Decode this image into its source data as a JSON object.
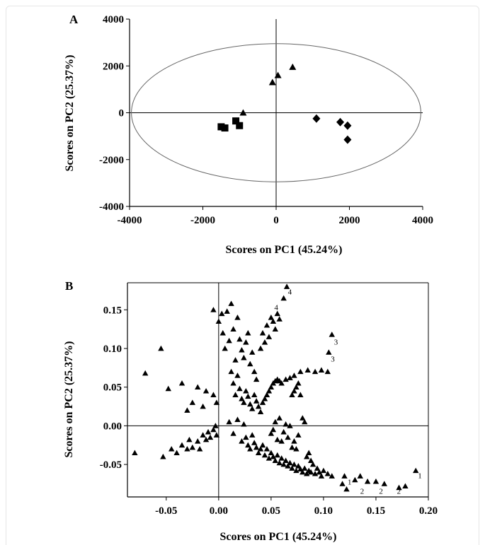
{
  "chart_data": [
    {
      "panel": "A",
      "type": "scatter",
      "xlabel": "Scores on PC1 (45.24%)",
      "ylabel": "Scores on PC2 (25.37%)",
      "xlim": [
        -4000,
        4000
      ],
      "ylim": [
        -4000,
        4000
      ],
      "xticks": [
        "-4000",
        "-2000",
        "0",
        "2000",
        "4000"
      ],
      "yticks": [
        "-4000",
        "-2000",
        "0",
        "2000",
        "4000"
      ],
      "confidence_ellipse": {
        "cx": 0,
        "cy": 0,
        "rx": 3950,
        "ry": 2950
      },
      "series": [
        {
          "marker": "square",
          "points": [
            [
              -1500,
              -600
            ],
            [
              -1400,
              -650
            ],
            [
              -1100,
              -350
            ],
            [
              -1000,
              -550
            ]
          ]
        },
        {
          "marker": "triangle",
          "points": [
            [
              -900,
              0
            ],
            [
              -100,
              1300
            ],
            [
              50,
              1600
            ],
            [
              450,
              1950
            ]
          ]
        },
        {
          "marker": "diamond",
          "points": [
            [
              1100,
              -250
            ],
            [
              1750,
              -400
            ],
            [
              1950,
              -550
            ],
            [
              1950,
              -1150
            ]
          ]
        }
      ]
    },
    {
      "panel": "B",
      "type": "scatter",
      "xlabel": "Scores on PC1 (45.24%)",
      "ylabel": "Scores on PC2 (25.37%)",
      "xlim": [
        -0.087,
        0.2
      ],
      "ylim": [
        -0.092,
        0.185
      ],
      "xticks": [
        "-0.05",
        "0.00",
        "0.05",
        "0.10",
        "0.15",
        "0.20"
      ],
      "yticks": [
        "-0.05",
        "0.00",
        "0.05",
        "0.10",
        "0.15"
      ],
      "series": [
        {
          "marker": "triangle",
          "points": [
            [
              -0.08,
              -0.035
            ],
            [
              -0.07,
              0.068
            ],
            [
              -0.055,
              0.1
            ],
            [
              -0.048,
              0.048
            ],
            [
              -0.053,
              -0.04
            ],
            [
              -0.045,
              -0.03
            ],
            [
              -0.04,
              -0.035
            ],
            [
              -0.035,
              -0.025
            ],
            [
              -0.03,
              -0.03
            ],
            [
              -0.028,
              -0.018
            ],
            [
              -0.025,
              -0.028
            ],
            [
              -0.02,
              -0.02
            ],
            [
              -0.018,
              -0.03
            ],
            [
              -0.015,
              -0.012
            ],
            [
              -0.012,
              -0.018
            ],
            [
              -0.01,
              -0.008
            ],
            [
              -0.008,
              -0.015
            ],
            [
              -0.005,
              -0.005
            ],
            [
              -0.003,
              0.0
            ],
            [
              -0.002,
              -0.012
            ],
            [
              -0.02,
              0.05
            ],
            [
              -0.012,
              0.045
            ],
            [
              -0.005,
              0.04
            ],
            [
              -0.002,
              0.03
            ],
            [
              -0.025,
              0.03
            ],
            [
              -0.035,
              0.055
            ],
            [
              -0.03,
              0.02
            ],
            [
              -0.015,
              0.025
            ],
            [
              -0.005,
              0.15
            ],
            [
              0.0,
              0.135
            ],
            [
              0.003,
              0.145
            ],
            [
              0.008,
              0.148
            ],
            [
              0.012,
              0.158
            ],
            [
              0.004,
              0.12
            ],
            [
              0.006,
              0.1
            ],
            [
              0.01,
              0.11
            ],
            [
              0.014,
              0.125
            ],
            [
              0.018,
              0.14
            ],
            [
              0.02,
              0.112
            ],
            [
              0.022,
              0.098
            ],
            [
              0.024,
              0.088
            ],
            [
              0.026,
              0.108
            ],
            [
              0.028,
              0.12
            ],
            [
              0.03,
              0.08
            ],
            [
              0.032,
              0.095
            ],
            [
              0.034,
              0.07
            ],
            [
              0.036,
              0.06
            ],
            [
              0.016,
              0.085
            ],
            [
              0.012,
              0.07
            ],
            [
              0.014,
              0.055
            ],
            [
              0.016,
              0.04
            ],
            [
              0.018,
              0.065
            ],
            [
              0.02,
              0.048
            ],
            [
              0.022,
              0.035
            ],
            [
              0.024,
              0.03
            ],
            [
              0.026,
              0.045
            ],
            [
              0.028,
              0.038
            ],
            [
              0.03,
              0.028
            ],
            [
              0.032,
              0.022
            ],
            [
              0.034,
              0.04
            ],
            [
              0.036,
              0.032
            ],
            [
              0.038,
              0.025
            ],
            [
              0.04,
              0.018
            ],
            [
              0.042,
              0.03
            ],
            [
              0.044,
              0.035
            ],
            [
              0.046,
              0.04
            ],
            [
              0.048,
              0.045
            ],
            [
              0.05,
              0.05
            ],
            [
              0.052,
              0.055
            ],
            [
              0.054,
              0.058
            ],
            [
              0.056,
              0.06
            ],
            [
              0.058,
              0.058
            ],
            [
              0.06,
              0.055
            ],
            [
              0.064,
              0.06
            ],
            [
              0.068,
              0.062
            ],
            [
              0.072,
              0.065
            ],
            [
              0.078,
              0.07
            ],
            [
              0.085,
              0.072
            ],
            [
              0.092,
              0.07
            ],
            [
              0.098,
              0.072
            ],
            [
              0.104,
              0.07
            ],
            [
              0.04,
              0.1
            ],
            [
              0.042,
              0.12
            ],
            [
              0.044,
              0.108
            ],
            [
              0.046,
              0.13
            ],
            [
              0.048,
              0.115
            ],
            [
              0.05,
              0.14
            ],
            [
              0.052,
              0.135
            ],
            [
              0.054,
              0.125
            ],
            [
              0.056,
              0.145
            ],
            [
              0.058,
              0.138
            ],
            [
              0.062,
              0.165
            ],
            [
              0.065,
              0.18
            ],
            [
              0.105,
              0.095
            ],
            [
              0.108,
              0.118
            ],
            [
              0.01,
              0.005
            ],
            [
              0.014,
              -0.01
            ],
            [
              0.018,
              0.008
            ],
            [
              0.022,
              -0.02
            ],
            [
              0.024,
              0.002
            ],
            [
              0.026,
              -0.015
            ],
            [
              0.028,
              -0.025
            ],
            [
              0.03,
              -0.03
            ],
            [
              0.032,
              -0.012
            ],
            [
              0.034,
              -0.022
            ],
            [
              0.036,
              -0.028
            ],
            [
              0.038,
              -0.035
            ],
            [
              0.04,
              -0.03
            ],
            [
              0.042,
              -0.025
            ],
            [
              0.044,
              -0.038
            ],
            [
              0.046,
              -0.03
            ],
            [
              0.048,
              -0.042
            ],
            [
              0.05,
              -0.035
            ],
            [
              0.052,
              -0.04
            ],
            [
              0.054,
              -0.045
            ],
            [
              0.056,
              -0.038
            ],
            [
              0.058,
              -0.048
            ],
            [
              0.06,
              -0.042
            ],
            [
              0.062,
              -0.05
            ],
            [
              0.064,
              -0.045
            ],
            [
              0.066,
              -0.052
            ],
            [
              0.068,
              -0.048
            ],
            [
              0.07,
              -0.055
            ],
            [
              0.072,
              -0.05
            ],
            [
              0.074,
              -0.058
            ],
            [
              0.076,
              -0.052
            ],
            [
              0.078,
              -0.056
            ],
            [
              0.08,
              -0.06
            ],
            [
              0.082,
              -0.055
            ],
            [
              0.084,
              -0.062
            ],
            [
              0.086,
              -0.058
            ],
            [
              0.088,
              -0.06
            ],
            [
              0.09,
              -0.05
            ],
            [
              0.092,
              -0.062
            ],
            [
              0.094,
              -0.055
            ],
            [
              0.096,
              -0.06
            ],
            [
              0.098,
              -0.065
            ],
            [
              0.1,
              -0.058
            ],
            [
              0.104,
              -0.062
            ],
            [
              0.108,
              -0.065
            ],
            [
              0.05,
              -0.01
            ],
            [
              0.052,
              -0.005
            ],
            [
              0.054,
              0.005
            ],
            [
              0.056,
              -0.018
            ],
            [
              0.058,
              0.01
            ],
            [
              0.06,
              -0.02
            ],
            [
              0.062,
              -0.008
            ],
            [
              0.064,
              0.002
            ],
            [
              0.066,
              -0.015
            ],
            [
              0.068,
              0.0
            ],
            [
              0.07,
              -0.028
            ],
            [
              0.072,
              -0.02
            ],
            [
              0.074,
              -0.03
            ],
            [
              0.076,
              -0.012
            ],
            [
              0.07,
              0.04
            ],
            [
              0.072,
              0.045
            ],
            [
              0.074,
              0.05
            ],
            [
              0.076,
              0.055
            ],
            [
              0.078,
              0.04
            ],
            [
              0.08,
              0.01
            ],
            [
              0.082,
              0.005
            ],
            [
              0.084,
              -0.04
            ],
            [
              0.086,
              -0.035
            ],
            [
              0.088,
              -0.045
            ],
            [
              0.118,
              -0.075
            ],
            [
              0.12,
              -0.065
            ],
            [
              0.122,
              -0.082
            ],
            [
              0.13,
              -0.07
            ],
            [
              0.135,
              -0.065
            ],
            [
              0.142,
              -0.072
            ],
            [
              0.15,
              -0.072
            ],
            [
              0.158,
              -0.075
            ],
            [
              0.172,
              -0.08
            ],
            [
              0.178,
              -0.078
            ],
            [
              0.188,
              -0.058
            ]
          ]
        }
      ],
      "annotations": [
        {
          "text": "4",
          "x": 0.066,
          "y": 0.17
        },
        {
          "text": "4",
          "x": 0.053,
          "y": 0.15
        },
        {
          "text": "3",
          "x": 0.11,
          "y": 0.105
        },
        {
          "text": "3",
          "x": 0.107,
          "y": 0.083
        },
        {
          "text": "1",
          "x": 0.123,
          "y": -0.076
        },
        {
          "text": "2",
          "x": 0.135,
          "y": -0.088
        },
        {
          "text": "2",
          "x": 0.153,
          "y": -0.088
        },
        {
          "text": "2",
          "x": 0.17,
          "y": -0.088
        },
        {
          "text": "1",
          "x": 0.19,
          "y": -0.068
        }
      ]
    }
  ]
}
